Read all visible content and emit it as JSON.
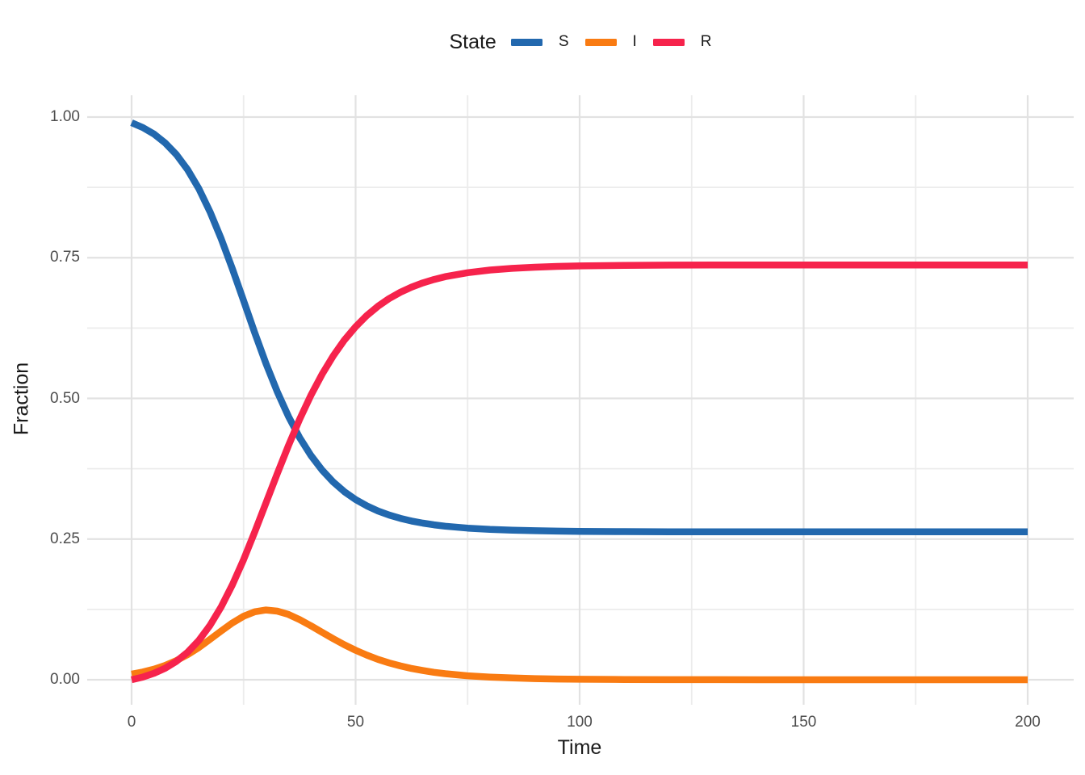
{
  "chart_data": {
    "type": "line",
    "title": "",
    "xlabel": "Time",
    "ylabel": "Fraction",
    "legend_title": "State",
    "legend_position": "top",
    "grid": true,
    "background": "#FFFFFF",
    "major_grid_color": "#E2E2E2",
    "minor_grid_color": "#ECECEC",
    "tick_label_color": "#4D4D4D",
    "axis_title_color": "#1A1A1A",
    "xlim": [
      0,
      200
    ],
    "ylim": [
      0,
      1
    ],
    "x_ticks": [
      0,
      50,
      100,
      150,
      200
    ],
    "x_tick_labels": [
      "0",
      "50",
      "100",
      "150",
      "200"
    ],
    "y_ticks": [
      0,
      0.25,
      0.5,
      0.75,
      1
    ],
    "y_tick_labels": [
      "0.00",
      "0.25",
      "0.50",
      "0.75",
      "1.00"
    ],
    "x_minor_ticks": [
      25,
      75,
      125,
      175
    ],
    "y_minor_ticks": [
      0.125,
      0.375,
      0.625,
      0.875
    ],
    "x": [
      0,
      2.5,
      5,
      7.5,
      10,
      12.5,
      15,
      17.5,
      20,
      22.5,
      25,
      27.5,
      30,
      32.5,
      35,
      37.5,
      40,
      42.5,
      45,
      47.5,
      50,
      52.5,
      55,
      57.5,
      60,
      62.5,
      65,
      67.5,
      70,
      75,
      80,
      85,
      90,
      95,
      100,
      110,
      120,
      130,
      140,
      150,
      160,
      180,
      200
    ],
    "series": [
      {
        "name": "S",
        "color": "#2268AE",
        "values": [
          0.99,
          0.9814,
          0.9697,
          0.954,
          0.9333,
          0.9065,
          0.8728,
          0.8317,
          0.7837,
          0.7302,
          0.6735,
          0.6164,
          0.5619,
          0.512,
          0.468,
          0.4304,
          0.3988,
          0.3727,
          0.3514,
          0.3342,
          0.3202,
          0.309,
          0.2999,
          0.2927,
          0.2868,
          0.2821,
          0.2784,
          0.2753,
          0.2729,
          0.2695,
          0.2672,
          0.2658,
          0.2648,
          0.2641,
          0.2637,
          0.2632,
          0.263,
          0.2629,
          0.2629,
          0.2629,
          0.2629,
          0.2629,
          0.2629
        ]
      },
      {
        "name": "I",
        "color": "#F97B12",
        "values": [
          0.01,
          0.0138,
          0.0188,
          0.0254,
          0.034,
          0.0446,
          0.0573,
          0.0717,
          0.0867,
          0.101,
          0.1129,
          0.1208,
          0.1239,
          0.122,
          0.116,
          0.1069,
          0.096,
          0.0844,
          0.0729,
          0.0621,
          0.0524,
          0.0437,
          0.0362,
          0.0298,
          0.0245,
          0.02,
          0.0163,
          0.0132,
          0.0107,
          0.0071,
          0.0047,
          0.0031,
          0.002,
          0.0013,
          0.0009,
          0.0004,
          0.0001,
          0.0001,
          0,
          0,
          0,
          0,
          0
        ]
      },
      {
        "name": "R",
        "color": "#F6234C",
        "values": [
          0,
          0.0048,
          0.0115,
          0.0205,
          0.0327,
          0.0489,
          0.0699,
          0.0966,
          0.1296,
          0.1688,
          0.2136,
          0.2628,
          0.3143,
          0.366,
          0.416,
          0.4627,
          0.5052,
          0.5428,
          0.5756,
          0.6037,
          0.6274,
          0.6473,
          0.6638,
          0.6775,
          0.6887,
          0.6979,
          0.7053,
          0.7114,
          0.7164,
          0.7234,
          0.7281,
          0.7311,
          0.7332,
          0.7346,
          0.7354,
          0.7364,
          0.7369,
          0.737,
          0.7371,
          0.7371,
          0.7371,
          0.7371,
          0.7371
        ]
      }
    ]
  }
}
